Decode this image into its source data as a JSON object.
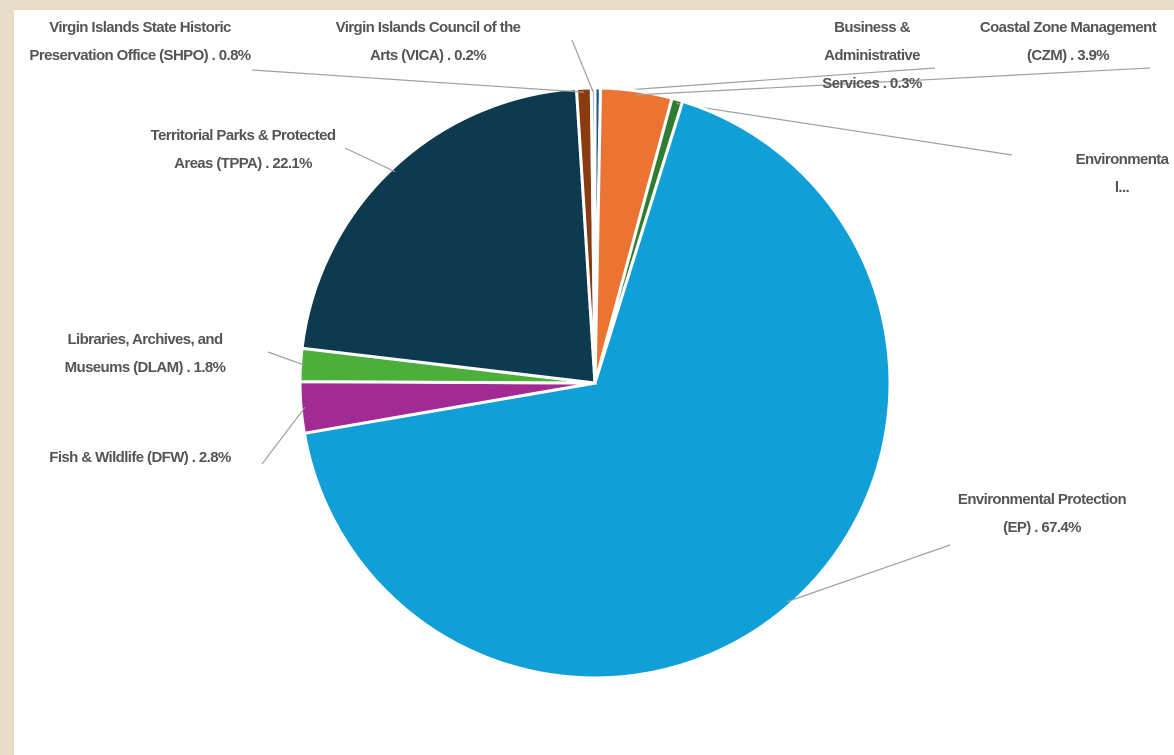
{
  "chart_data": {
    "type": "pie",
    "categories": [
      "Business & Administrative Services",
      "Coastal Zone Management (CZM)",
      "Environmental...",
      "Environmental Protection (EP)",
      "Fish & Wildlife (DFW)",
      "Libraries, Archives, and Museums (DLAM)",
      "Territorial Parks & Protected Areas (TPPA)",
      "Virgin Islands State Historic Preservation Office (SHPO)",
      "Virgin Islands Council of the Arts (VICA)"
    ],
    "values": [
      0.3,
      3.9,
      0.6,
      67.4,
      2.8,
      1.8,
      22.1,
      0.8,
      0.2
    ],
    "value_labels": [
      ". 0.3%",
      ". 3.9%",
      null,
      ". 67.4%",
      ". 2.8%",
      ". 1.8%",
      ". 22.1%",
      ". 0.8%",
      ". 0.2%"
    ],
    "colors": [
      "#1d5a86",
      "#ec7433",
      "#2e7d32",
      "#119fd8",
      "#a22a93",
      "#4caf3a",
      "#0e3a50",
      "#8a3b10",
      "#5b87b8"
    ]
  }
}
